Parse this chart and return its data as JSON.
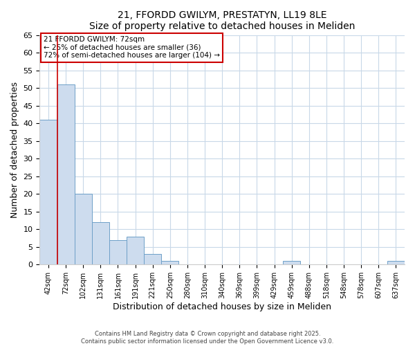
{
  "title": "21, FFORDD GWILYM, PRESTATYN, LL19 8LE",
  "subtitle": "Size of property relative to detached houses in Meliden",
  "xlabel": "Distribution of detached houses by size in Meliden",
  "ylabel": "Number of detached properties",
  "bar_labels": [
    "42sqm",
    "72sqm",
    "102sqm",
    "131sqm",
    "161sqm",
    "191sqm",
    "221sqm",
    "250sqm",
    "280sqm",
    "310sqm",
    "340sqm",
    "369sqm",
    "399sqm",
    "429sqm",
    "459sqm",
    "488sqm",
    "518sqm",
    "548sqm",
    "578sqm",
    "607sqm",
    "637sqm"
  ],
  "bar_values": [
    41,
    51,
    20,
    12,
    7,
    8,
    3,
    1,
    0,
    0,
    0,
    0,
    0,
    0,
    1,
    0,
    0,
    0,
    0,
    0,
    1
  ],
  "bar_color": "#cddcee",
  "bar_edge_color": "#6ea0c8",
  "highlight_bar_index": 1,
  "highlight_color": "#cc0000",
  "ylim": [
    0,
    65
  ],
  "yticks": [
    0,
    5,
    10,
    15,
    20,
    25,
    30,
    35,
    40,
    45,
    50,
    55,
    60,
    65
  ],
  "annotation_title": "21 FFORDD GWILYM: 72sqm",
  "annotation_line1": "← 25% of detached houses are smaller (36)",
  "annotation_line2": "72% of semi-detached houses are larger (104) →",
  "annotation_box_color": "#cc0000",
  "footer_line1": "Contains HM Land Registry data © Crown copyright and database right 2025.",
  "footer_line2": "Contains public sector information licensed under the Open Government Licence v3.0.",
  "bg_color": "#ffffff",
  "grid_color": "#c8d8e8",
  "title_fontsize": 10,
  "subtitle_fontsize": 9
}
